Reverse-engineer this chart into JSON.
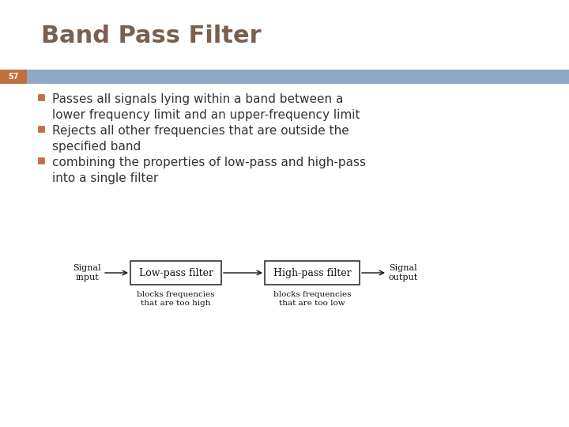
{
  "title": "Band Pass Filter",
  "title_color": "#7a6050",
  "title_fontsize": 22,
  "slide_number": "57",
  "slide_number_bg": "#c07040",
  "slide_number_color": "#ffffff",
  "header_bar_color": "#8fa8c8",
  "bullet_color": "#333333",
  "bullet_box_color": "#c07040",
  "bullets": [
    "Passes all signals lying within a band between a\nlower frequency limit and an upper-frequency limit",
    "Rejects all other frequencies that are outside the\nspecified band",
    "combining the properties of low-pass and high-pass\ninto a single filter"
  ],
  "bullet_fontsize": 11,
  "diagram": {
    "signal_input": "Signal\ninput",
    "signal_output": "Signal\noutput",
    "box1_label": "Low-pass filter",
    "box2_label": "High-pass filter",
    "caption1": "blocks frequencies\nthat are too high",
    "caption2": "blocks frequencies\nthat are too low",
    "box_color": "#ffffff",
    "box_edge_color": "#333333",
    "text_color": "#111111",
    "arrow_color": "#111111"
  },
  "bg_color": "#ffffff"
}
